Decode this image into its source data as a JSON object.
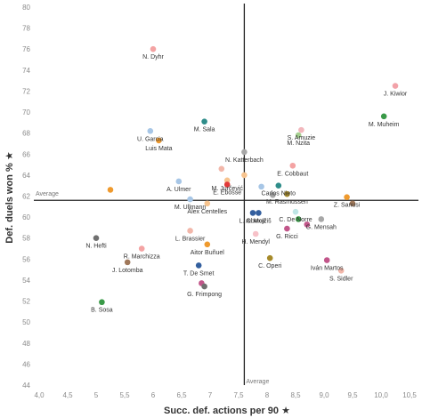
{
  "chart_data": {
    "type": "scatter",
    "xlabel": "Succ. def. actions per 90 ★",
    "ylabel": "Def. duels won % ★",
    "xlim": [
      4.0,
      10.5
    ],
    "ylim": [
      44,
      80
    ],
    "x_ticks": [
      4.0,
      4.5,
      5.0,
      5.5,
      6.0,
      6.5,
      7.0,
      7.5,
      8.0,
      8.5,
      9.0,
      9.5,
      10.0,
      10.5
    ],
    "x_tick_labels": [
      "4,0",
      "4,5",
      "5",
      "5,5",
      "6",
      "6,5",
      "7",
      "7,5",
      "8",
      "8,5",
      "9,0",
      "9,5",
      "10,0",
      "10,5"
    ],
    "y_ticks": [
      44,
      46,
      48,
      50,
      52,
      54,
      56,
      58,
      60,
      62,
      64,
      66,
      68,
      70,
      72,
      74,
      76,
      78,
      80
    ],
    "grid": false,
    "avg_x": 7.6,
    "avg_y": 61.6,
    "avg_label": "Average",
    "points": [
      {
        "name": "N. Dyhr",
        "x": 6.0,
        "y": 76.0,
        "color": "#f4a3a3"
      },
      {
        "name": "J. Kiwior",
        "x": 10.25,
        "y": 72.5,
        "color": "#f2a2a9"
      },
      {
        "name": "M. Muheim",
        "x": 10.05,
        "y": 69.6,
        "color": "#3a9a48"
      },
      {
        "name": "M. Sala",
        "x": 6.9,
        "y": 69.1,
        "color": "#2f8d8a"
      },
      {
        "name": "U. Garcia",
        "x": 5.95,
        "y": 68.2,
        "color": "#a7c6e6"
      },
      {
        "name": "S. Amuzie",
        "x": 8.6,
        "y": 68.3,
        "color": "#f2b7bc"
      },
      {
        "name": "M. Nzita",
        "x": 8.55,
        "y": 67.8,
        "color": "#a4cf8f"
      },
      {
        "name": "Luis Mata",
        "x": 6.1,
        "y": 67.3,
        "color": "#ef9a2e"
      },
      {
        "name": "N. Katterbach",
        "x": 7.6,
        "y": 66.2,
        "color": "#a7a7a7"
      },
      {
        "name": "E. Cobbaut",
        "x": 8.45,
        "y": 64.9,
        "color": "#f4a3a3"
      },
      {
        "name": "M. Jurčević",
        "x": 7.3,
        "y": 63.5,
        "color": "#f7c48f"
      },
      {
        "name": "A. Ulmer",
        "x": 6.45,
        "y": 63.4,
        "color": "#a7c6e6"
      },
      {
        "name": "E. Ebosse",
        "x": 7.3,
        "y": 63.1,
        "color": "#e23a3a"
      },
      {
        "name": "Carlos Nieto",
        "x": 8.2,
        "y": 63.0,
        "color": "#2f8d8a"
      },
      {
        "name": "M. Rasmussen",
        "x": 8.35,
        "y": 62.2,
        "color": "#a68a2a"
      },
      {
        "name": "Z. Sanusi",
        "x": 9.4,
        "y": 61.9,
        "color": "#ef9a2e"
      },
      {
        "name": "M. Ullmann",
        "x": 6.65,
        "y": 61.7,
        "color": "#a7c6e6"
      },
      {
        "name": "Álex Centelles",
        "x": 6.95,
        "y": 61.3,
        "color": "#f7c48f"
      },
      {
        "name": "L. Obexer",
        "x": 7.75,
        "y": 60.4,
        "color": "#335f9e"
      },
      {
        "name": "C. De Norre",
        "x": 8.5,
        "y": 60.5,
        "color": "#bfe6e6"
      },
      {
        "name": "A. Mojžiš",
        "x": 7.85,
        "y": 60.4,
        "color": "#335f9e"
      },
      {
        "name": "G. Mensah",
        "x": 8.95,
        "y": 59.8,
        "color": "#a7a7a7"
      },
      {
        "name": "G. Ricci",
        "x": 8.35,
        "y": 58.9,
        "color": "#c2568a"
      },
      {
        "name": "L. Brassier",
        "x": 6.65,
        "y": 58.7,
        "color": "#f2b7aa"
      },
      {
        "name": "H. Mendyl",
        "x": 7.8,
        "y": 58.4,
        "color": "#f7c1c8"
      },
      {
        "name": "N. Hefti",
        "x": 5.0,
        "y": 58.0,
        "color": "#707070"
      },
      {
        "name": "R. Marchizza",
        "x": 5.8,
        "y": 57.0,
        "color": "#f4a3a3"
      },
      {
        "name": "Aitor Buñuel",
        "x": 6.95,
        "y": 57.4,
        "color": "#ef9a2e"
      },
      {
        "name": "C. Operi",
        "x": 8.05,
        "y": 56.1,
        "color": "#a68a2a"
      },
      {
        "name": "Iván Martos",
        "x": 9.05,
        "y": 55.9,
        "color": "#c2568a"
      },
      {
        "name": "J. Lotomba",
        "x": 5.55,
        "y": 55.7,
        "color": "#a0785a"
      },
      {
        "name": "T. De Smet",
        "x": 6.8,
        "y": 55.4,
        "color": "#335f9e"
      },
      {
        "name": "S. Sidler",
        "x": 9.3,
        "y": 54.9,
        "color": "#f2b7aa"
      },
      {
        "name": "G. Frimpong",
        "x": 6.9,
        "y": 53.4,
        "color": "#707070"
      },
      {
        "name": "B. Sosa",
        "x": 5.1,
        "y": 51.9,
        "color": "#3a9a48"
      }
    ],
    "unlabeled_points": [
      {
        "x": 5.25,
        "y": 62.6,
        "color": "#ef9a2e"
      },
      {
        "x": 7.6,
        "y": 64.0,
        "color": "#f7c48f"
      },
      {
        "x": 7.2,
        "y": 64.6,
        "color": "#f2b7aa"
      },
      {
        "x": 8.1,
        "y": 62.1,
        "color": "#a7a7a7"
      },
      {
        "x": 8.7,
        "y": 59.3,
        "color": "#c2568a"
      },
      {
        "x": 8.55,
        "y": 59.8,
        "color": "#3a9a48"
      },
      {
        "x": 9.5,
        "y": 61.3,
        "color": "#a0785a"
      },
      {
        "x": 7.9,
        "y": 62.9,
        "color": "#a7c6e6"
      },
      {
        "x": 6.85,
        "y": 53.7,
        "color": "#c2568a"
      }
    ]
  }
}
